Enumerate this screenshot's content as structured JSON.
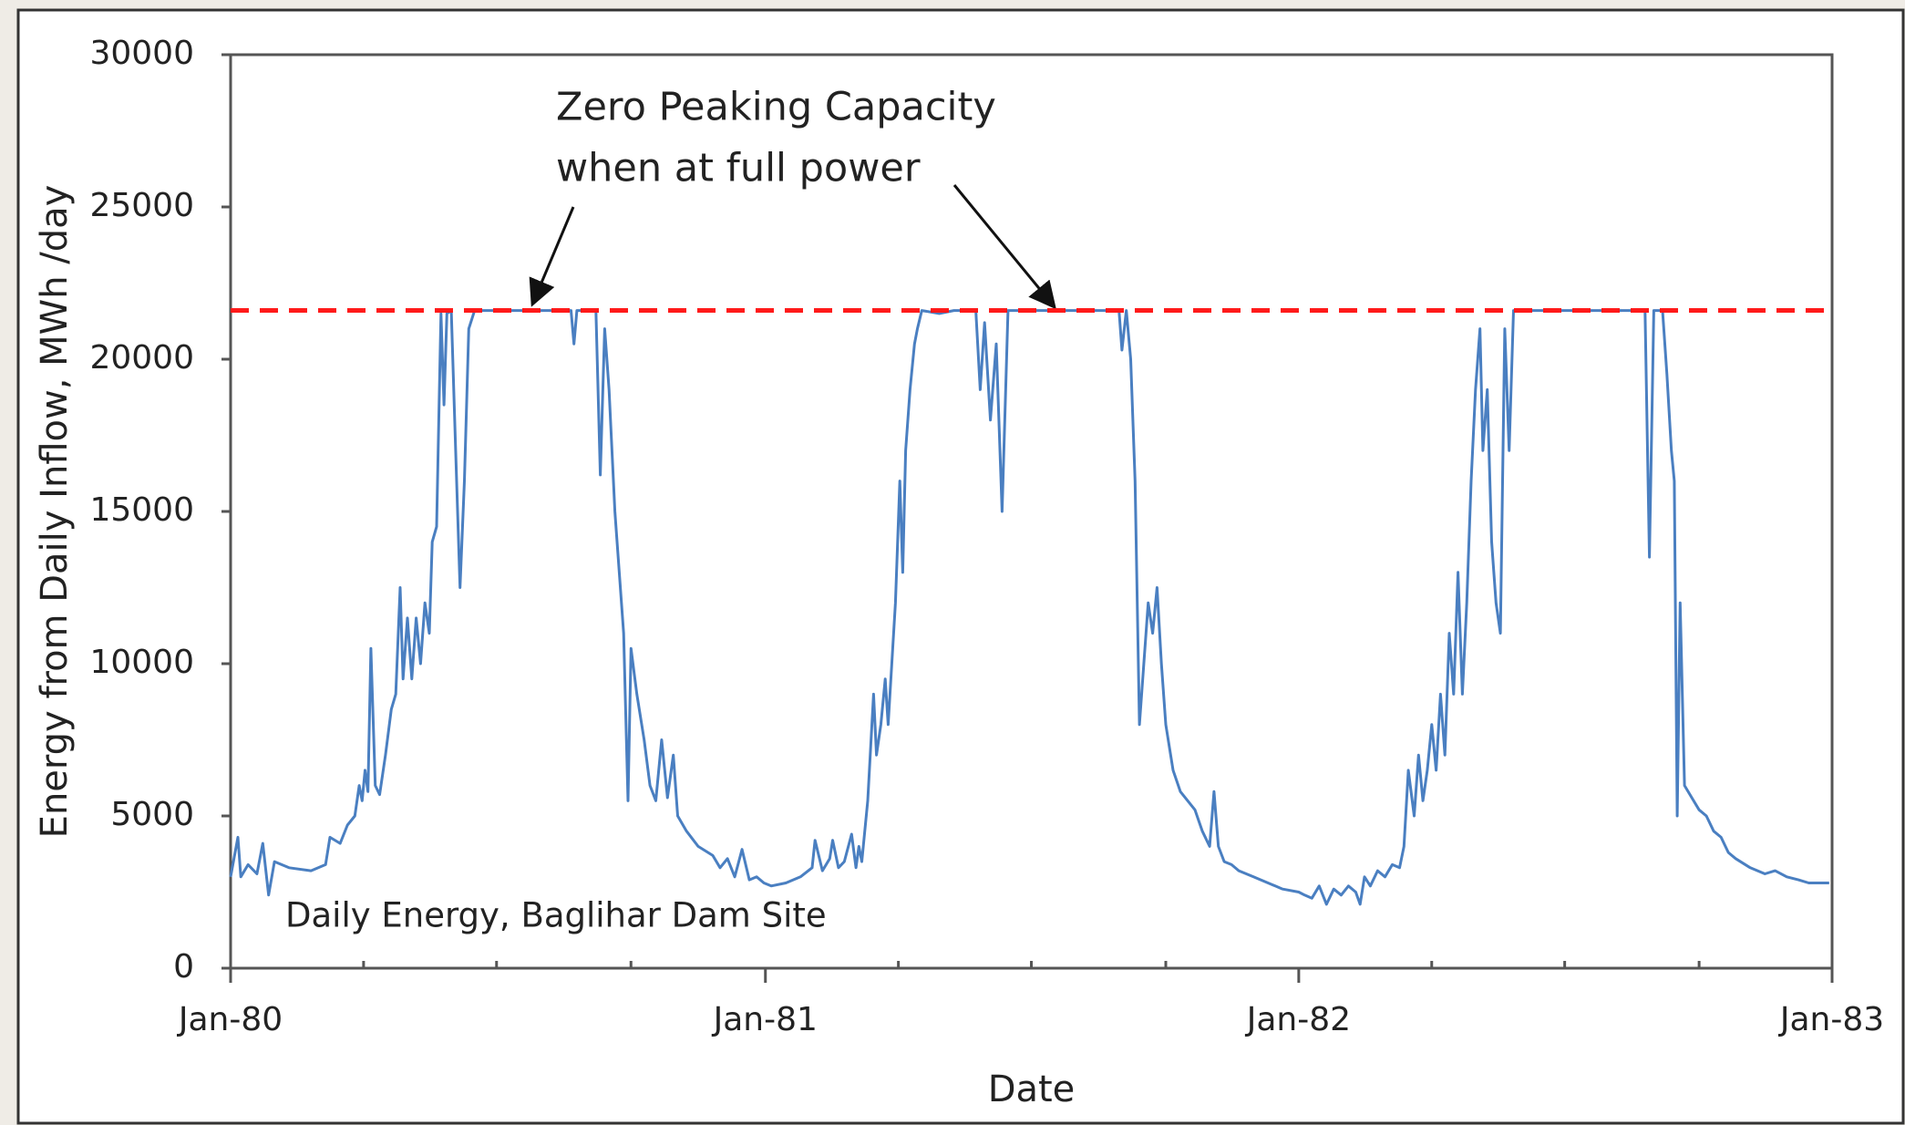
{
  "chart_data": {
    "type": "line",
    "xlabel": "Date",
    "ylabel": "Energy from Daily Inflow, MWh /day",
    "annotation": [
      "Zero Peaking Capacity",
      "when at full power"
    ],
    "xlim": [
      0,
      1096
    ],
    "xticks": [
      {
        "value": 0,
        "label": "Jan-80"
      },
      {
        "value": 366,
        "label": "Jan-81"
      },
      {
        "value": 731,
        "label": "Jan-82"
      },
      {
        "value": 1096,
        "label": "Jan-83"
      }
    ],
    "xminorticks": [
      91,
      182,
      274,
      457,
      548,
      640,
      822,
      913,
      1005
    ],
    "ylim": [
      0,
      30000
    ],
    "yticks": [
      0,
      5000,
      10000,
      15000,
      20000,
      25000,
      30000
    ],
    "reference_line": {
      "value": 21600,
      "color": "#ff1a1a"
    },
    "x": [
      0,
      5,
      7,
      12,
      18,
      22,
      26,
      30,
      40,
      55,
      65,
      68,
      75,
      80,
      85,
      88,
      90,
      92,
      94,
      96,
      99,
      102,
      106,
      110,
      113,
      116,
      118,
      121,
      124,
      127,
      130,
      133,
      136,
      138,
      141,
      144,
      146,
      148,
      151,
      154,
      157,
      160,
      163,
      167,
      200,
      233,
      235,
      237,
      250,
      253,
      256,
      259,
      263,
      266,
      269,
      272,
      274,
      278,
      283,
      287,
      291,
      295,
      299,
      303,
      306,
      312,
      320,
      330,
      335,
      340,
      345,
      350,
      355,
      360,
      365,
      370,
      380,
      390,
      398,
      400,
      405,
      410,
      412,
      416,
      420,
      425,
      428,
      430,
      432,
      436,
      440,
      442,
      445,
      448,
      450,
      455,
      458,
      460,
      462,
      465,
      468,
      470,
      473,
      485,
      495,
      510,
      513,
      516,
      520,
      524,
      528,
      532,
      560,
      608,
      610,
      613,
      616,
      619,
      622,
      625,
      628,
      631,
      634,
      637,
      640,
      645,
      650,
      660,
      665,
      670,
      673,
      676,
      680,
      685,
      690,
      700,
      710,
      720,
      731,
      735,
      740,
      745,
      750,
      755,
      760,
      765,
      770,
      773,
      776,
      780,
      785,
      790,
      795,
      800,
      803,
      806,
      810,
      813,
      816,
      819,
      822,
      825,
      828,
      831,
      834,
      837,
      840,
      843,
      846,
      849,
      852,
      855,
      857,
      860,
      863,
      866,
      869,
      872,
      875,
      878,
      890,
      930,
      968,
      971,
      974,
      980,
      983,
      986,
      988,
      990,
      992,
      995,
      1000,
      1005,
      1010,
      1015,
      1020,
      1025,
      1030,
      1040,
      1050,
      1057,
      1065,
      1073,
      1080,
      1090,
      1094
    ],
    "series": [
      {
        "name": "Daily Energy, Baglihar Dam Site",
        "color": "#4a7fc1",
        "values": [
          3000,
          4300,
          3000,
          3400,
          3100,
          4100,
          2400,
          3500,
          3300,
          3200,
          3400,
          4300,
          4100,
          4700,
          5000,
          6000,
          5500,
          6500,
          5800,
          10500,
          6000,
          5700,
          7000,
          8500,
          9000,
          12500,
          9500,
          11500,
          9500,
          11500,
          10000,
          12000,
          11000,
          14000,
          14500,
          21500,
          18500,
          21500,
          21600,
          17000,
          12500,
          16000,
          21000,
          21600,
          21600,
          21600,
          20500,
          21600,
          21600,
          16200,
          21000,
          19000,
          15000,
          13000,
          11000,
          5500,
          10500,
          9000,
          7500,
          6000,
          5500,
          7500,
          5600,
          7000,
          5000,
          4500,
          4000,
          3700,
          3300,
          3600,
          3000,
          3900,
          2900,
          3000,
          2800,
          2700,
          2800,
          3000,
          3300,
          4200,
          3200,
          3600,
          4200,
          3300,
          3500,
          4400,
          3300,
          4000,
          3500,
          5500,
          9000,
          7000,
          8000,
          9500,
          8000,
          12000,
          16000,
          13000,
          17000,
          19000,
          20500,
          21000,
          21600,
          21500,
          21600,
          21600,
          19000,
          21200,
          18000,
          20500,
          15000,
          21600,
          21600,
          21600,
          20300,
          21600,
          20000,
          16000,
          8000,
          10000,
          12000,
          11000,
          12500,
          10000,
          8000,
          6500,
          5800,
          5200,
          4500,
          4000,
          5800,
          4000,
          3500,
          3400,
          3200,
          3000,
          2800,
          2600,
          2500,
          2400,
          2300,
          2700,
          2100,
          2600,
          2400,
          2700,
          2500,
          2100,
          3000,
          2700,
          3200,
          3000,
          3400,
          3300,
          4000,
          6500,
          5000,
          7000,
          5500,
          6500,
          8000,
          6500,
          9000,
          7000,
          11000,
          9000,
          13000,
          9000,
          12000,
          16000,
          19000,
          21000,
          17000,
          19000,
          14000,
          12000,
          11000,
          21000,
          17000,
          21600,
          21600,
          21600,
          21600,
          13500,
          21600,
          21600,
          19500,
          17000,
          16000,
          5000,
          12000,
          6000,
          5600,
          5200,
          5000,
          4500,
          4300,
          3800,
          3600,
          3300,
          3100,
          3200,
          3000,
          2900,
          2800,
          2800,
          2800
        ]
      }
    ]
  }
}
